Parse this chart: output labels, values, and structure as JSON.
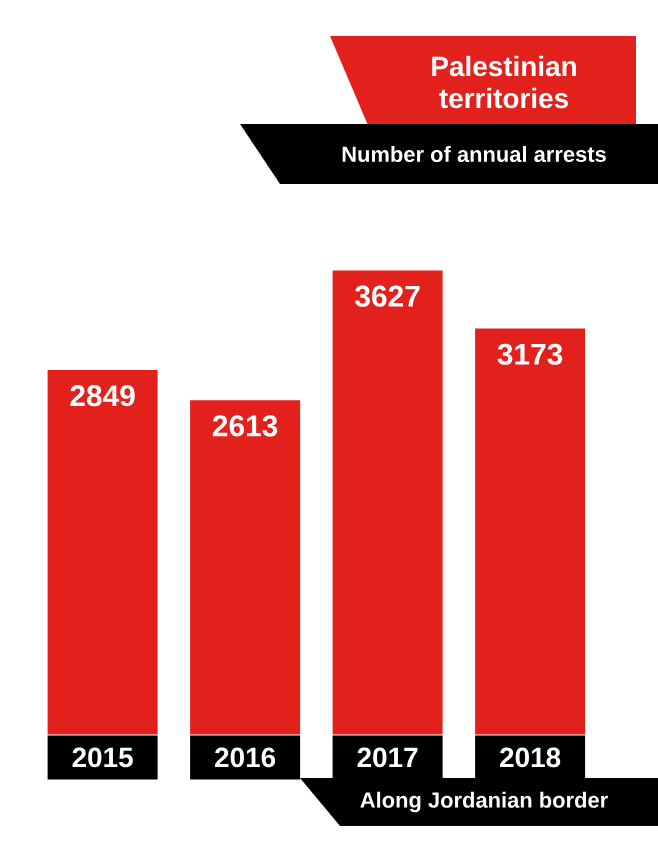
{
  "chart_data": {
    "type": "bar",
    "title": "Palestinian territories",
    "subtitle": "Number of annual arrests",
    "categories": [
      "2015",
      "2016",
      "2017",
      "2018"
    ],
    "values": [
      2849,
      2613,
      3627,
      3173
    ],
    "color": "#e2211c",
    "data_labels": true,
    "annotations": [
      "Along Jordanian border"
    ]
  }
}
